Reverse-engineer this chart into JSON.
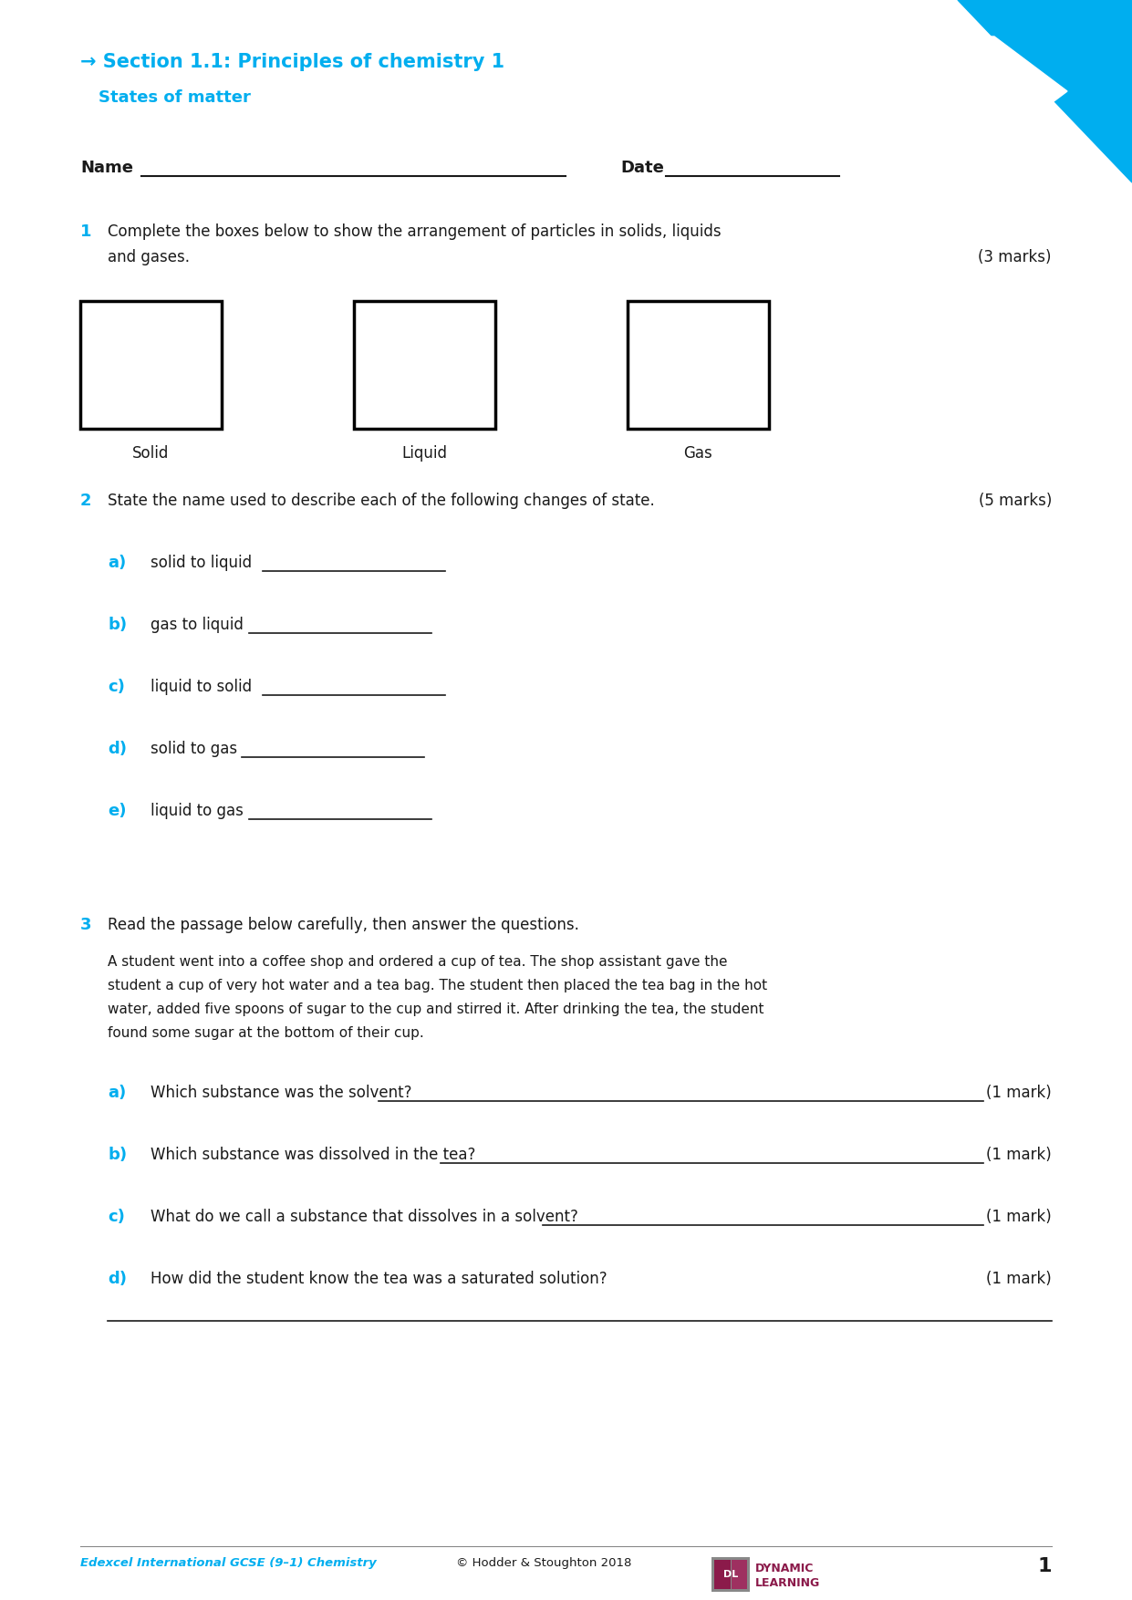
{
  "bg_color": "#ffffff",
  "cyan": "#00AEEF",
  "dark_text": "#1a1a1a",
  "header_line1": "→ Section 1.1: Principles of chemistry 1",
  "header_line2": "States of matter",
  "name_label": "Name",
  "date_label": "Date",
  "q1_num": "1",
  "q1_line1": "Complete the boxes below to show the arrangement of particles in solids, liquids",
  "q1_line2": "and gases.",
  "q1_marks": "(3 marks)",
  "q1_boxes": [
    "Solid",
    "Liquid",
    "Gas"
  ],
  "q2_num": "2",
  "q2_text": "State the name used to describe each of the following changes of state.",
  "q2_marks": "(5 marks)",
  "q2_parts": [
    {
      "label": "a)",
      "text": "solid to liquid"
    },
    {
      "label": "b)",
      "text": "gas to liquid"
    },
    {
      "label": "c)",
      "text": "liquid to solid"
    },
    {
      "label": "d)",
      "text": "solid to gas"
    },
    {
      "label": "e)",
      "text": "liquid to gas"
    }
  ],
  "q3_num": "3",
  "q3_text": "Read the passage below carefully, then answer the questions.",
  "q3_passage": [
    "A student went into a coffee shop and ordered a cup of tea. The shop assistant gave the",
    "student a cup of very hot water and a tea bag. The student then placed the tea bag in the hot",
    "water, added five spoons of sugar to the cup and stirred it. After drinking the tea, the student",
    "found some sugar at the bottom of their cup."
  ],
  "q3_parts": [
    {
      "label": "a)",
      "text": "Which substance was the solvent?",
      "marks": "(1 mark)",
      "has_line": true
    },
    {
      "label": "b)",
      "text": "Which substance was dissolved in the tea?",
      "marks": "(1 mark)",
      "has_line": true
    },
    {
      "label": "c)",
      "text": "What do we call a substance that dissolves in a solvent?",
      "marks": "(1 mark)",
      "has_line": true
    },
    {
      "label": "d)",
      "text": "How did the student know the tea was a saturated solution?",
      "marks": "(1 mark)",
      "has_line": false
    }
  ],
  "footer_left": "Edexcel International GCSE (9–1) Chemistry",
  "footer_center": "© Hodder & Stoughton 2018",
  "footer_page": "1",
  "triangle_color": "#00AEEF"
}
